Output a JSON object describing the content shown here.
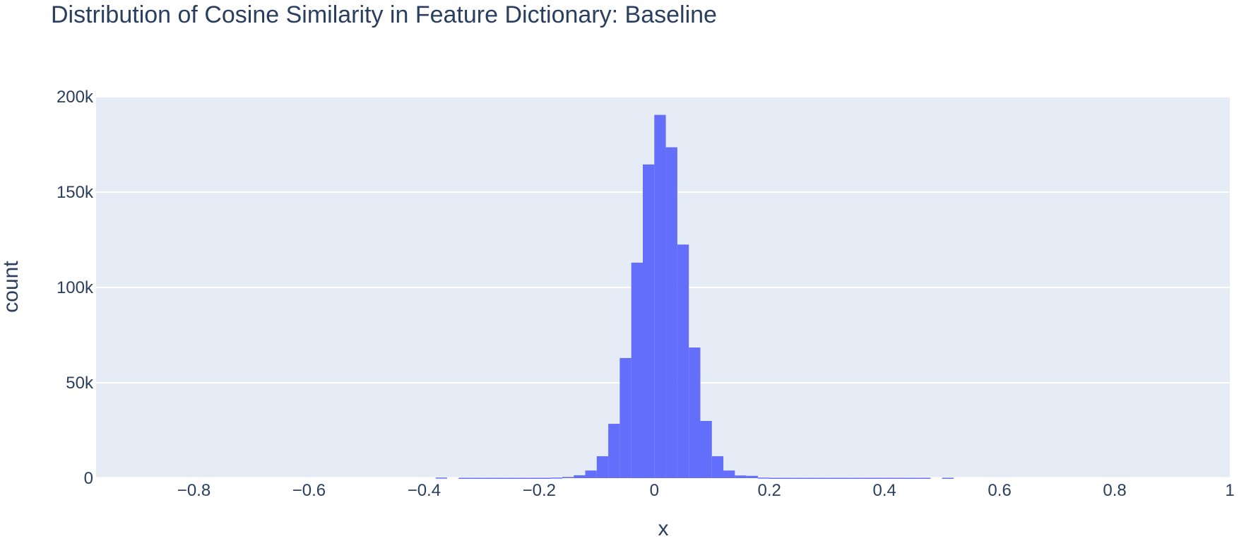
{
  "chart_data": {
    "type": "bar",
    "title": "Distribution of Cosine Similarity in Feature Dictionary: Baseline",
    "xlabel": "x",
    "ylabel": "count",
    "xlim": [
      -0.97,
      1.0
    ],
    "ylim": [
      0,
      200000
    ],
    "grid": true,
    "legend": "none",
    "bar_color": "#636efa",
    "plot_bg": "#e5ecf6",
    "bin_width": 0.02,
    "x_ticks": [
      {
        "value": -0.8,
        "label": "−0.8"
      },
      {
        "value": -0.6,
        "label": "−0.6"
      },
      {
        "value": -0.4,
        "label": "−0.4"
      },
      {
        "value": -0.2,
        "label": "−0.2"
      },
      {
        "value": 0,
        "label": "0"
      },
      {
        "value": 0.2,
        "label": "0.2"
      },
      {
        "value": 0.4,
        "label": "0.4"
      },
      {
        "value": 0.6,
        "label": "0.6"
      },
      {
        "value": 0.8,
        "label": "0.8"
      },
      {
        "value": 1,
        "label": "1"
      }
    ],
    "y_ticks": [
      {
        "value": 0,
        "label": "0"
      },
      {
        "value": 50000,
        "label": "50k"
      },
      {
        "value": 100000,
        "label": "100k"
      },
      {
        "value": 150000,
        "label": "150k"
      },
      {
        "value": 200000,
        "label": "200k"
      }
    ],
    "bins": [
      {
        "x0": -0.38,
        "count": 300
      },
      {
        "x0": -0.34,
        "count": 200
      },
      {
        "x0": -0.32,
        "count": 200
      },
      {
        "x0": -0.3,
        "count": 200
      },
      {
        "x0": -0.28,
        "count": 200
      },
      {
        "x0": -0.26,
        "count": 200
      },
      {
        "x0": -0.24,
        "count": 200
      },
      {
        "x0": -0.22,
        "count": 200
      },
      {
        "x0": -0.2,
        "count": 200
      },
      {
        "x0": -0.18,
        "count": 300
      },
      {
        "x0": -0.16,
        "count": 600
      },
      {
        "x0": -0.14,
        "count": 1500
      },
      {
        "x0": -0.12,
        "count": 4000
      },
      {
        "x0": -0.1,
        "count": 11500
      },
      {
        "x0": -0.08,
        "count": 28500
      },
      {
        "x0": -0.06,
        "count": 63000
      },
      {
        "x0": -0.04,
        "count": 113000
      },
      {
        "x0": -0.02,
        "count": 164500
      },
      {
        "x0": 0.0,
        "count": 190500
      },
      {
        "x0": 0.02,
        "count": 173500
      },
      {
        "x0": 0.04,
        "count": 122500
      },
      {
        "x0": 0.06,
        "count": 68500
      },
      {
        "x0": 0.08,
        "count": 30000
      },
      {
        "x0": 0.1,
        "count": 11500
      },
      {
        "x0": 0.12,
        "count": 4000
      },
      {
        "x0": 0.14,
        "count": 1400
      },
      {
        "x0": 0.16,
        "count": 1200
      },
      {
        "x0": 0.18,
        "count": 300
      },
      {
        "x0": 0.2,
        "count": 200
      },
      {
        "x0": 0.22,
        "count": 200
      },
      {
        "x0": 0.24,
        "count": 200
      },
      {
        "x0": 0.26,
        "count": 200
      },
      {
        "x0": 0.28,
        "count": 200
      },
      {
        "x0": 0.3,
        "count": 200
      },
      {
        "x0": 0.32,
        "count": 200
      },
      {
        "x0": 0.34,
        "count": 200
      },
      {
        "x0": 0.36,
        "count": 200
      },
      {
        "x0": 0.38,
        "count": 200
      },
      {
        "x0": 0.4,
        "count": 200
      },
      {
        "x0": 0.42,
        "count": 200
      },
      {
        "x0": 0.44,
        "count": 200
      },
      {
        "x0": 0.46,
        "count": 200
      },
      {
        "x0": 0.5,
        "count": 200
      }
    ]
  }
}
